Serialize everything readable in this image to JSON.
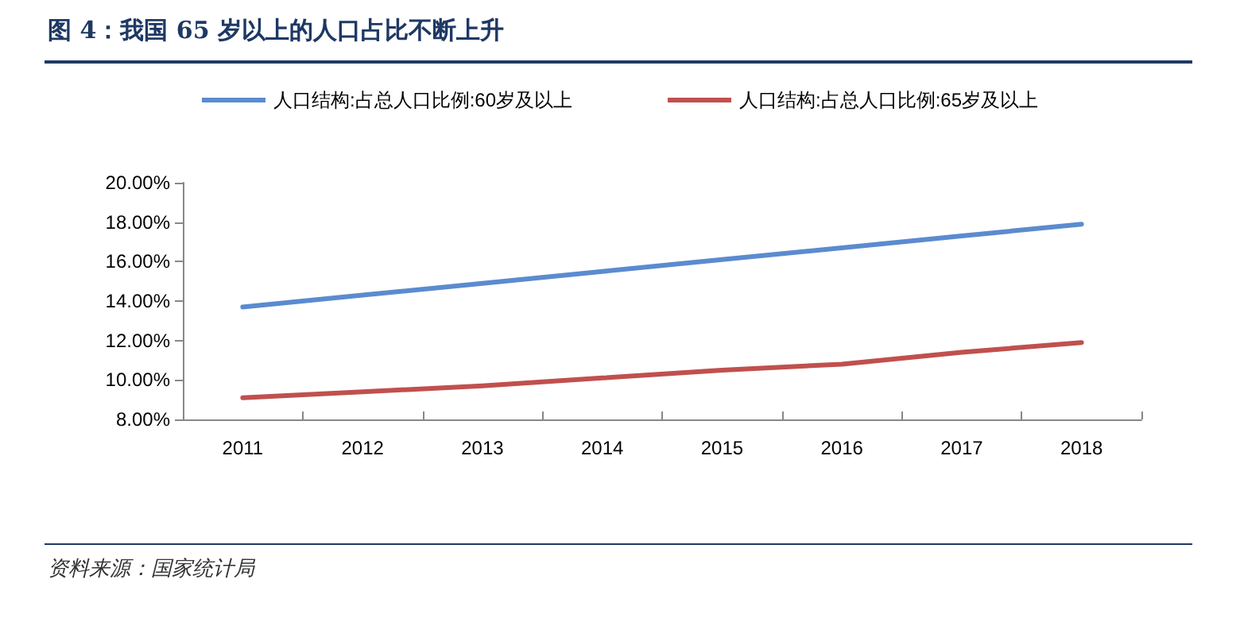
{
  "chart_data": {
    "type": "line",
    "title": "图 4：我国 65 岁以上的人口占比不断上升",
    "categories": [
      "2011",
      "2012",
      "2013",
      "2014",
      "2015",
      "2016",
      "2017",
      "2018"
    ],
    "series": [
      {
        "name": "人口结构:占总人口比例:60岁及以上",
        "color": "#5b8bcf",
        "values": [
          13.7,
          14.3,
          14.9,
          15.5,
          16.1,
          16.7,
          17.3,
          17.9
        ]
      },
      {
        "name": "人口结构:占总人口比例:65岁及以上",
        "color": "#c0504d",
        "values": [
          9.1,
          9.4,
          9.7,
          10.1,
          10.5,
          10.8,
          11.4,
          11.9
        ]
      }
    ],
    "ylim": [
      8,
      20
    ],
    "yticks": [
      {
        "value": 8,
        "label": "8.00%"
      },
      {
        "value": 10,
        "label": "10.00%"
      },
      {
        "value": 12,
        "label": "12.00%"
      },
      {
        "value": 14,
        "label": "14.00%"
      },
      {
        "value": 16,
        "label": "16.00%"
      },
      {
        "value": 18,
        "label": "18.00%"
      },
      {
        "value": 20,
        "label": "20.00%"
      }
    ],
    "grid": false,
    "legend": "top",
    "marker": "none",
    "line_style": "solid",
    "annotations": [
      "资料来源：国家统计局"
    ]
  }
}
